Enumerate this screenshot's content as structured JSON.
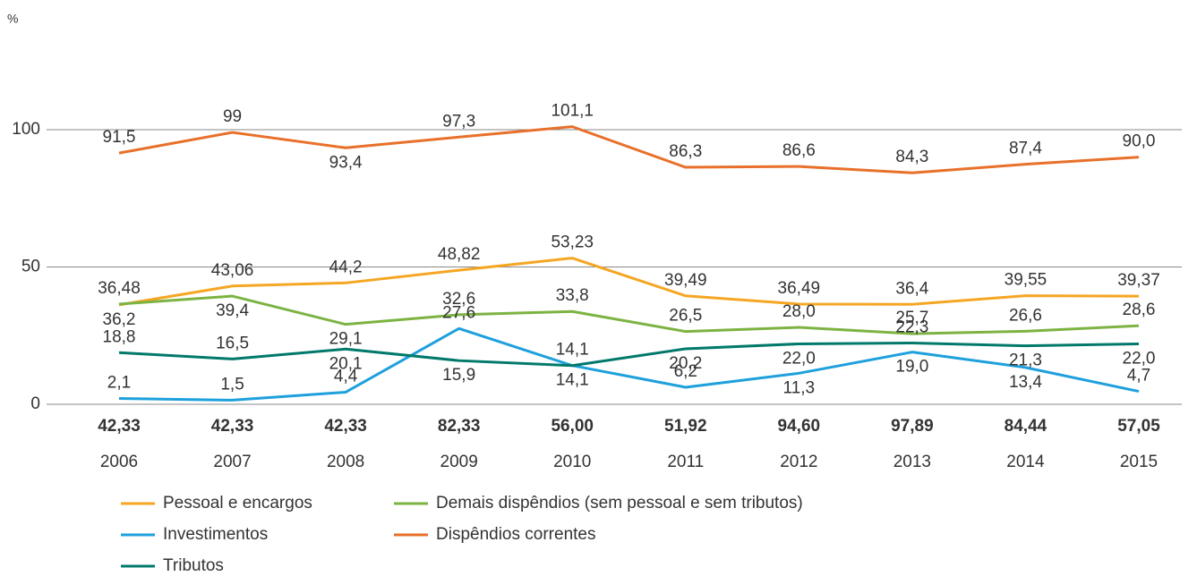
{
  "chart_data": {
    "type": "line",
    "y_label": "%",
    "categories": [
      "2006",
      "2007",
      "2008",
      "2009",
      "2010",
      "2011",
      "2012",
      "2013",
      "2014",
      "2015"
    ],
    "footer_labels": [
      "42,33",
      "42,33",
      "42,33",
      "82,33",
      "56,00",
      "51,92",
      "94,60",
      "97,89",
      "84,44",
      "57,05"
    ],
    "ylim": [
      0,
      100
    ],
    "yticks": [
      0,
      50,
      100
    ],
    "grid": true,
    "series": [
      {
        "name": "Pessoal e encargos",
        "color": "#f5a623",
        "values": [
          36.2,
          43.06,
          44.2,
          48.82,
          53.23,
          39.49,
          36.49,
          36.4,
          39.55,
          39.37
        ],
        "value_labels": [
          "36,2",
          "43,06",
          "44,2",
          "48,82",
          "53,23",
          "39,49",
          "36,49",
          "36,4",
          "39,55",
          "39,37"
        ]
      },
      {
        "name": "Demais dispêndios (sem pessoal e sem tributos)",
        "color": "#7cb342",
        "values": [
          36.48,
          39.4,
          29.1,
          32.6,
          33.8,
          26.5,
          28.0,
          25.7,
          26.6,
          28.6
        ],
        "value_labels": [
          "36,48",
          "39,4",
          "29,1",
          "32,6",
          "33,8",
          "26,5",
          "28,0",
          "25,7",
          "26,6",
          "28,6"
        ]
      },
      {
        "name": "Investimentos",
        "color": "#1ea0dc",
        "values": [
          2.1,
          1.5,
          4.4,
          27.6,
          14.1,
          6.2,
          11.3,
          19.0,
          13.4,
          4.7
        ],
        "value_labels": [
          "2,1",
          "1,5",
          "4,4",
          "27,6",
          "14,1",
          "6,2",
          "11,3",
          "19,0",
          "13,4",
          "4,7"
        ]
      },
      {
        "name": "Dispêndios correntes",
        "color": "#e8702a",
        "values": [
          91.5,
          99,
          93.4,
          97.3,
          101.1,
          86.3,
          86.6,
          84.3,
          87.4,
          90.0
        ],
        "value_labels": [
          "91,5",
          "99",
          "93,4",
          "97,3",
          "101,1",
          "86,3",
          "86,6",
          "84,3",
          "87,4",
          "90,0"
        ]
      },
      {
        "name": "Tributos",
        "color": "#00796b",
        "values": [
          18.8,
          16.5,
          20.1,
          15.9,
          14.1,
          20.2,
          22.0,
          22.3,
          21.3,
          22.0
        ],
        "value_labels": [
          "18,8",
          "16,5",
          "20,1",
          "15,9",
          "14,1",
          "20,2",
          "22,0",
          "22,3",
          "21,3",
          "22,0"
        ]
      }
    ]
  }
}
